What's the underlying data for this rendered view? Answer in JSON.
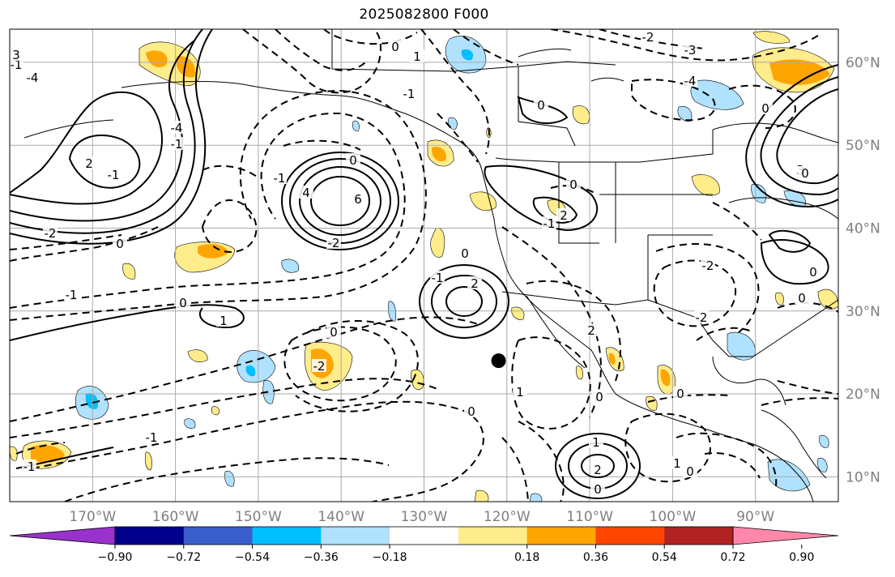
{
  "title": "2025082800 F000",
  "map": {
    "lon_range": [
      -180,
      -80
    ],
    "lat_range": [
      7,
      64
    ],
    "lat_ticks": [
      {
        "value": 60,
        "label": "60°N"
      },
      {
        "value": 50,
        "label": "50°N"
      },
      {
        "value": 40,
        "label": "40°N"
      },
      {
        "value": 30,
        "label": "30°N"
      },
      {
        "value": 20,
        "label": "20°N"
      },
      {
        "value": 10,
        "label": "10°N"
      }
    ],
    "lon_ticks": [
      {
        "value": -170,
        "label": "170°W"
      },
      {
        "value": -160,
        "label": "160°W"
      },
      {
        "value": -150,
        "label": "150°W"
      },
      {
        "value": -140,
        "label": "140°W"
      },
      {
        "value": -130,
        "label": "130°W"
      },
      {
        "value": -120,
        "label": "120°W"
      },
      {
        "value": -110,
        "label": "110°W"
      },
      {
        "value": -100,
        "label": "100°W"
      },
      {
        "value": -90,
        "label": "90°W"
      }
    ],
    "gridlines": true,
    "marker": {
      "lon": -121,
      "lat": 24,
      "color": "#000000"
    },
    "contour_labels": [
      "0",
      "-1",
      "-2",
      "-3",
      "-4",
      "1",
      "2",
      "3",
      "4",
      "6"
    ]
  },
  "colorbar": {
    "colors": [
      "#9932cc",
      "#00008b",
      "#3a5fcd",
      "#00bfff",
      "#b0e2ff",
      "#ffffff",
      "#ffec8b",
      "#ffa500",
      "#ff4500",
      "#b22222",
      "#ff88aa"
    ],
    "ticks": [
      "−0.90",
      "−0.72",
      "−0.54",
      "−0.36",
      "−0.18",
      "0.18",
      "0.36",
      "0.54",
      "0.72",
      "0.90"
    ],
    "extend": "both"
  }
}
